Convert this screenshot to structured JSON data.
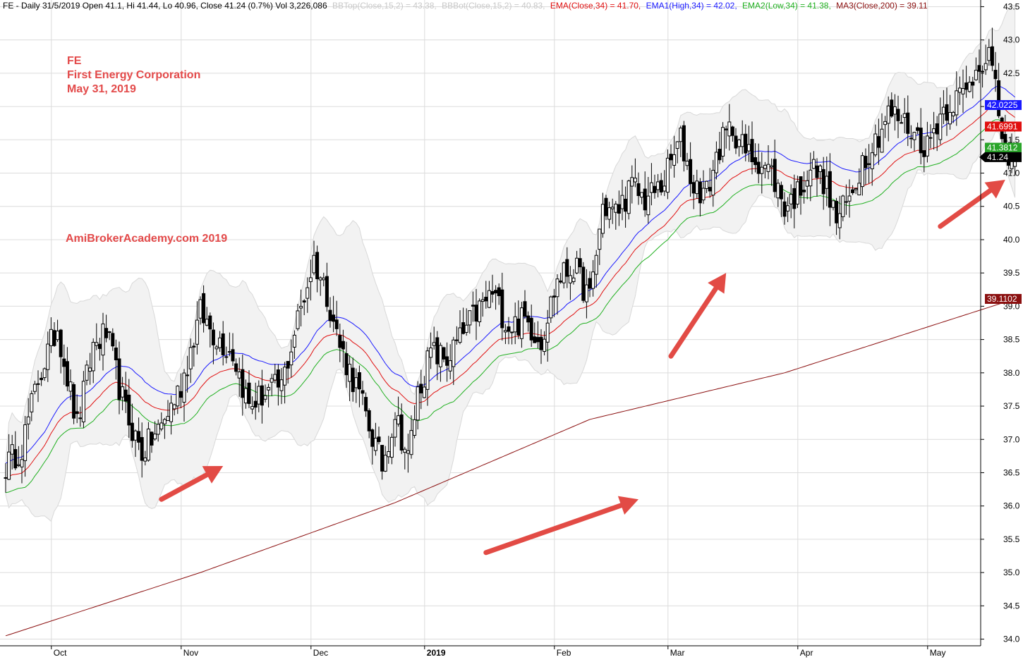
{
  "header": {
    "ticker_line": "FE - Daily 31/5/2019 Open 41.1, Hi 41.44, Lo 40.96, Close 41.24 (0.7%) Vol 3,226,086",
    "bbtop": "BBTop(Close,15,2) = 43.38,",
    "bbbot": "BBBot(Close,15,2) = 40.83,",
    "ema": "EMA(Close,34) = 41.70,",
    "ema1": "EMA1(High,34) = 42.02,",
    "ema2": "EMA2(Low,34) = 41.38,",
    "ma3": "MA3(Close,200) = 39.11"
  },
  "annotation": {
    "line1": "FE",
    "line2": "First Energy Corporation",
    "line3": "May 31, 2019",
    "watermark": "AmiBrokerAcademy.com  2019"
  },
  "price_tags": [
    {
      "text": "42.0225",
      "value": 42.0225,
      "color": "#1a1aff"
    },
    {
      "text": "41.6991",
      "value": 41.6991,
      "color": "#e01010"
    },
    {
      "text": "41.3812",
      "value": 41.3812,
      "color": "#2aa52a"
    },
    {
      "text": "41.24",
      "value": 41.24,
      "color": "#000000"
    },
    {
      "text": "39.1102",
      "value": 39.1102,
      "color": "#8b1010"
    }
  ],
  "colors": {
    "band_fill": "#f2f2f2",
    "band_edge": "#d8d8d8",
    "ema_close": "#e01010",
    "ema_high": "#1a1aff",
    "ema_low": "#20b020",
    "ma200": "#8b1010",
    "candle": "#000000",
    "arrow": "#e24b45",
    "grid": "#dcdcdc",
    "header_dim": "#c8c8c8"
  },
  "chart_data": {
    "type": "candlestick",
    "title": "FE - Daily 31/5/2019",
    "ylim": [
      33.9,
      43.6
    ],
    "y_ticks": [
      34.0,
      34.5,
      35.0,
      35.5,
      36.0,
      36.5,
      37.0,
      37.5,
      38.0,
      38.5,
      39.0,
      39.5,
      40.0,
      40.5,
      41.0,
      41.5,
      42.0,
      42.5,
      43.0,
      43.5
    ],
    "x_ticks": [
      {
        "label": "Oct",
        "index": 8
      },
      {
        "label": "Nov",
        "index": 48
      },
      {
        "label": "Dec",
        "index": 88
      },
      {
        "label": "2019",
        "index": 123
      },
      {
        "label": "Feb",
        "index": 163
      },
      {
        "label": "Mar",
        "index": 198
      },
      {
        "label": "Apr",
        "index": 238
      },
      {
        "label": "May",
        "index": 278
      }
    ],
    "grid": true,
    "candle_keypoints": [
      [
        0,
        36.6
      ],
      [
        5,
        36.9
      ],
      [
        10,
        37.9
      ],
      [
        16,
        38.7
      ],
      [
        22,
        37.2
      ],
      [
        27,
        38.4
      ],
      [
        31,
        38.6
      ],
      [
        37,
        37.4
      ],
      [
        42,
        36.8
      ],
      [
        48,
        37.2
      ],
      [
        54,
        37.8
      ],
      [
        60,
        38.9
      ],
      [
        64,
        38.6
      ],
      [
        70,
        38.3
      ],
      [
        75,
        37.5
      ],
      [
        80,
        37.7
      ],
      [
        85,
        37.8
      ],
      [
        90,
        38.8
      ],
      [
        95,
        39.7
      ],
      [
        99,
        39.2
      ],
      [
        103,
        38.4
      ],
      [
        108,
        37.8
      ],
      [
        112,
        37.2
      ],
      [
        116,
        36.6
      ],
      [
        120,
        37.4
      ],
      [
        124,
        36.7
      ],
      [
        127,
        37.7
      ],
      [
        131,
        38.3
      ],
      [
        136,
        38.2
      ],
      [
        140,
        38.5
      ],
      [
        145,
        38.9
      ],
      [
        150,
        39.2
      ],
      [
        155,
        38.7
      ],
      [
        160,
        38.8
      ],
      [
        165,
        38.5
      ],
      [
        170,
        39.4
      ],
      [
        175,
        39.6
      ],
      [
        180,
        39.1
      ],
      [
        184,
        40.5
      ],
      [
        188,
        40.4
      ],
      [
        193,
        40.8
      ],
      [
        197,
        40.6
      ],
      [
        202,
        40.8
      ],
      [
        208,
        41.5
      ],
      [
        212,
        40.8
      ],
      [
        216,
        40.7
      ],
      [
        220,
        41.4
      ],
      [
        224,
        41.7
      ],
      [
        228,
        41.3
      ],
      [
        232,
        41.2
      ],
      [
        236,
        41.0
      ],
      [
        240,
        40.5
      ],
      [
        244,
        40.7
      ],
      [
        248,
        41.1
      ],
      [
        252,
        40.9
      ],
      [
        256,
        40.3
      ],
      [
        260,
        40.6
      ],
      [
        264,
        41.2
      ],
      [
        268,
        41.5
      ],
      [
        272,
        41.9
      ],
      [
        276,
        41.8
      ],
      [
        280,
        41.6
      ],
      [
        284,
        41.4
      ],
      [
        288,
        41.9
      ],
      [
        292,
        42.1
      ],
      [
        296,
        42.2
      ],
      [
        300,
        42.7
      ],
      [
        303,
        42.8
      ],
      [
        306,
        41.9
      ],
      [
        309,
        41.0
      ],
      [
        311,
        41.24
      ]
    ],
    "ma200_keypoints": [
      [
        0,
        34.05
      ],
      [
        60,
        35.0
      ],
      [
        120,
        36.05
      ],
      [
        180,
        37.3
      ],
      [
        240,
        38.0
      ],
      [
        311,
        39.11
      ]
    ],
    "arrows": [
      {
        "from": [
          48,
          36.1
        ],
        "to": [
          67,
          36.6
        ]
      },
      {
        "from": [
          148,
          35.3
        ],
        "to": [
          195,
          36.1
        ]
      },
      {
        "from": [
          205,
          38.25
        ],
        "to": [
          222,
          39.5
        ]
      },
      {
        "from": [
          288,
          40.2
        ],
        "to": [
          308,
          40.9
        ]
      }
    ]
  }
}
